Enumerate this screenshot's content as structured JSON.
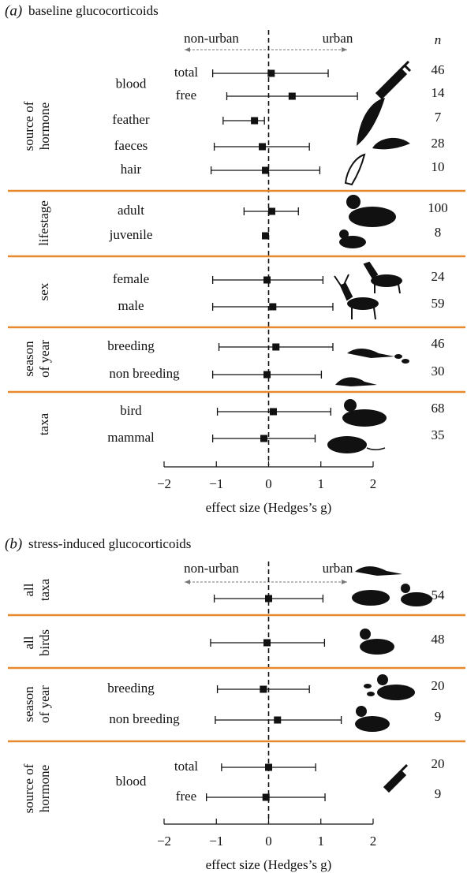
{
  "chart_data": [
    {
      "type": "forest",
      "panel": "(a)",
      "title": "baseline glucocorticoids",
      "left_label": "non-urban",
      "right_label": "urban",
      "n_label": "n",
      "xlabel": "effect size (Hedges’s g)",
      "xlim": [
        -2,
        2
      ],
      "xticks": [
        {
          "value": -2,
          "label": "−2"
        },
        {
          "value": -1,
          "label": "−1"
        },
        0,
        1,
        2
      ],
      "groups": [
        {
          "label": [
            "source of",
            "hormone"
          ],
          "rows": [
            {
              "label": "blood",
              "rows": [
                {
                  "label": "total",
                  "value": 0.05,
                  "ci": [
                    -1.07,
                    1.14
                  ],
                  "n": 46
                },
                {
                  "label": "free",
                  "value": 0.45,
                  "ci": [
                    -0.8,
                    1.7
                  ],
                  "n": 14
                }
              ]
            },
            {
              "label": "feather",
              "value": -0.27,
              "ci": [
                -0.87,
                -0.08
              ],
              "n": 7
            },
            {
              "label": "faeces",
              "value": -0.12,
              "ci": [
                -1.04,
                0.78
              ],
              "n": 28
            },
            {
              "label": "hair",
              "value": -0.06,
              "ci": [
                -1.1,
                0.98
              ],
              "n": 10
            }
          ]
        },
        {
          "label": [
            "lifestage"
          ],
          "rows": [
            {
              "label": "adult",
              "value": 0.06,
              "ci": [
                -0.47,
                0.57
              ],
              "n": 100
            },
            {
              "label": "juvenile",
              "value": -0.06,
              "ci": null,
              "n": 8
            }
          ]
        },
        {
          "label": [
            "sex"
          ],
          "rows": [
            {
              "label": "female",
              "value": -0.03,
              "ci": [
                -1.07,
                1.04
              ],
              "n": 24
            },
            {
              "label": "male",
              "value": 0.08,
              "ci": [
                -1.07,
                1.23
              ],
              "n": 59
            }
          ]
        },
        {
          "label": [
            "season",
            "of year"
          ],
          "rows": [
            {
              "label": "breeding",
              "value": 0.14,
              "ci": [
                -0.95,
                1.23
              ],
              "n": 46
            },
            {
              "label": "non breeding",
              "value": -0.03,
              "ci": [
                -1.07,
                1.01
              ],
              "n": 30
            }
          ]
        },
        {
          "label": [
            "taxa"
          ],
          "rows": [
            {
              "label": "bird",
              "value": 0.09,
              "ci": [
                -0.98,
                1.19
              ],
              "n": 68
            },
            {
              "label": "mammal",
              "value": -0.09,
              "ci": [
                -1.07,
                0.89
              ],
              "n": 35
            }
          ]
        }
      ]
    },
    {
      "type": "forest",
      "panel": "(b)",
      "title": "stress-induced glucocorticoids",
      "left_label": "non-urban",
      "right_label": "urban",
      "xlabel": "effect size (Hedges’s g)",
      "xlim": [
        -2,
        2
      ],
      "xticks": [
        {
          "value": -2,
          "label": "−2"
        },
        {
          "value": -1,
          "label": "−1"
        },
        0,
        1,
        2
      ],
      "groups": [
        {
          "label": [
            "all",
            "taxa"
          ],
          "rows": [
            {
              "label": null,
              "value": 0.0,
              "ci": [
                -1.04,
                1.04
              ],
              "n": 54
            }
          ]
        },
        {
          "label": [
            "all",
            "birds"
          ],
          "rows": [
            {
              "label": null,
              "value": -0.03,
              "ci": [
                -1.11,
                1.07
              ],
              "n": 48
            }
          ]
        },
        {
          "label": [
            "season",
            "of year"
          ],
          "rows": [
            {
              "label": "breeding",
              "value": -0.1,
              "ci": [
                -0.98,
                0.78
              ],
              "n": 20
            },
            {
              "label": "non breeding",
              "value": 0.17,
              "ci": [
                -1.02,
                1.39
              ],
              "n": 9
            }
          ]
        },
        {
          "label": [
            "source of",
            "hormone"
          ],
          "rows": [
            {
              "label": "blood",
              "rows": [
                {
                  "label": "total",
                  "value": 0.0,
                  "ci": [
                    -0.9,
                    0.9
                  ],
                  "n": 20
                },
                {
                  "label": "free",
                  "value": -0.05,
                  "ci": [
                    -1.19,
                    1.08
                  ],
                  "n": 9
                }
              ]
            }
          ]
        }
      ]
    }
  ]
}
